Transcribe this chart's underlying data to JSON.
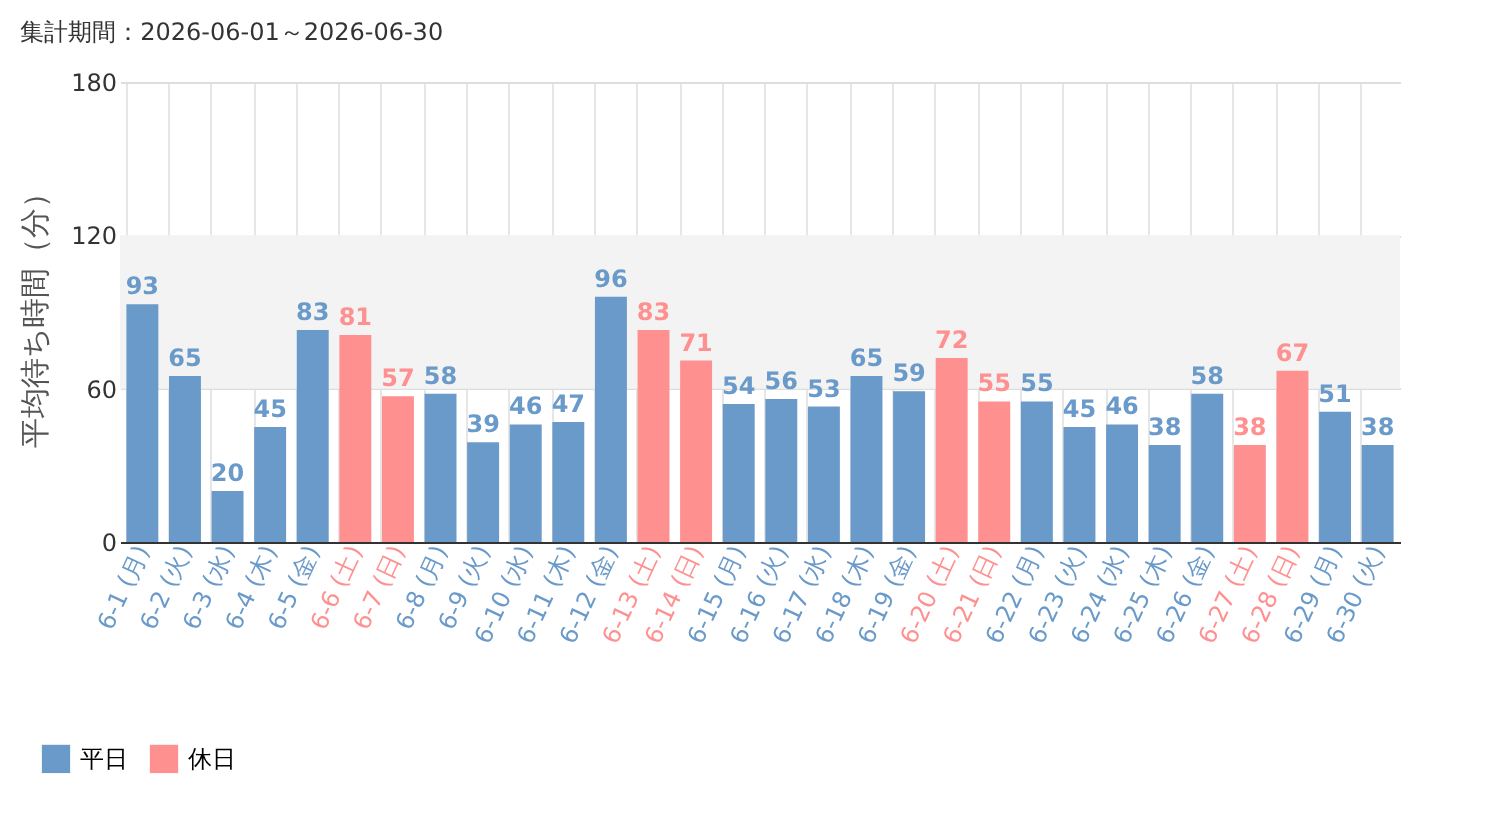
{
  "chart_data": {
    "type": "bar",
    "title": "集計期間：2026-06-01～2026-06-30",
    "ylabel": "平均待ち時間（分）",
    "categories": [
      "6-1 (月)",
      "6-2 (火)",
      "6-3 (水)",
      "6-4 (木)",
      "6-5 (金)",
      "6-6 (土)",
      "6-7 (日)",
      "6-8 (月)",
      "6-9 (火)",
      "6-10 (水)",
      "6-11 (木)",
      "6-12 (金)",
      "6-13 (土)",
      "6-14 (日)",
      "6-15 (月)",
      "6-16 (火)",
      "6-17 (水)",
      "6-18 (木)",
      "6-19 (金)",
      "6-20 (土)",
      "6-21 (日)",
      "6-22 (月)",
      "6-23 (火)",
      "6-24 (水)",
      "6-25 (木)",
      "6-26 (金)",
      "6-27 (土)",
      "6-28 (日)",
      "6-29 (月)",
      "6-30 (火)"
    ],
    "series": [
      {
        "name": "平日",
        "color": "#6a9ac9",
        "values": [
          93,
          65,
          20,
          45,
          83,
          null,
          null,
          58,
          39,
          46,
          47,
          96,
          null,
          null,
          54,
          56,
          53,
          65,
          59,
          null,
          null,
          55,
          45,
          46,
          38,
          58,
          null,
          null,
          51,
          38
        ]
      },
      {
        "name": "休日",
        "color": "#ff9090",
        "values": [
          null,
          null,
          null,
          null,
          null,
          81,
          57,
          null,
          null,
          null,
          null,
          null,
          83,
          71,
          null,
          null,
          null,
          null,
          null,
          72,
          55,
          null,
          null,
          null,
          null,
          null,
          38,
          67,
          null,
          null
        ]
      }
    ],
    "ylim": [
      0,
      180
    ],
    "yticks": [
      0,
      60,
      120,
      180
    ],
    "grid": true,
    "data_labels": true,
    "legend": "bottom left",
    "bands": [
      {
        "axis": "y",
        "from": 60,
        "to": 120,
        "color": "#f3f3f3"
      }
    ]
  }
}
